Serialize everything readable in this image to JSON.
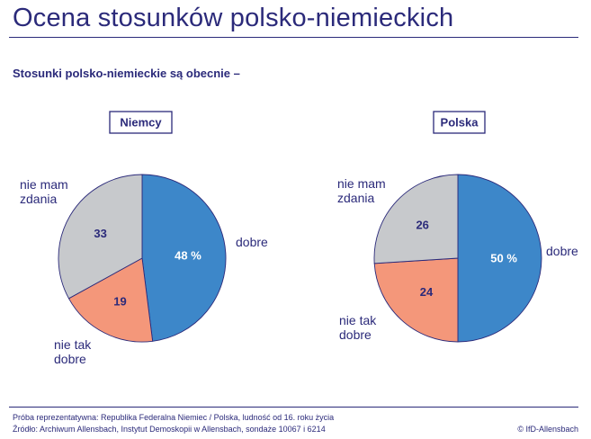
{
  "title": "Ocena stosunków polsko-niemieckich",
  "subtitle": "Stosunki polsko-niemieckie są obecnie –",
  "footer": {
    "line1": "Próba reprezentatywna: Republika Federalna Niemiec / Polska, ludność od 16. roku życia",
    "line2": "Źródło: Archiwum Allensbach, Instytut Demoskopii w Allensbach, sondaże 10067 i 6214",
    "copyright": "© IfD-Allensbach"
  },
  "colors": {
    "dobre": "#3d87c9",
    "nie_tak_dobre": "#f4977a",
    "nie_mam_zdania": "#c7c9cc",
    "text": "#2b2a7a"
  },
  "chart_data": [
    {
      "type": "pie",
      "title": "Niemcy",
      "start": "top",
      "direction": "clockwise",
      "slices": [
        {
          "key": "dobre",
          "label": [
            "dobre"
          ],
          "value": 48,
          "value_label": "48 %"
        },
        {
          "key": "nie_tak_dobre",
          "label": [
            "nie tak",
            "dobre"
          ],
          "value": 19,
          "value_label": "19"
        },
        {
          "key": "nie_mam_zdania",
          "label": [
            "nie mam",
            "zdania"
          ],
          "value": 33,
          "value_label": "33"
        }
      ]
    },
    {
      "type": "pie",
      "title": "Polska",
      "start": "top",
      "direction": "clockwise",
      "slices": [
        {
          "key": "dobre",
          "label": [
            "dobre"
          ],
          "value": 50,
          "value_label": "50 %"
        },
        {
          "key": "nie_tak_dobre",
          "label": [
            "nie tak",
            "dobre"
          ],
          "value": 24,
          "value_label": "24"
        },
        {
          "key": "nie_mam_zdania",
          "label": [
            "nie mam",
            "zdania"
          ],
          "value": 26,
          "value_label": "26"
        }
      ]
    }
  ]
}
